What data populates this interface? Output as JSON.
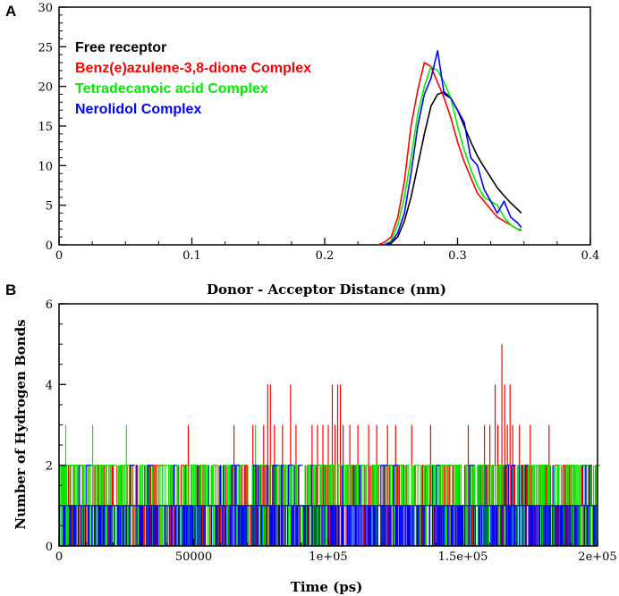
{
  "chart_data": [
    {
      "type": "line",
      "panel_label": "A",
      "xlabel": "Donor - Acceptor Distance (nm)",
      "ylabel": "",
      "xlim": [
        0,
        0.4
      ],
      "ylim": [
        0,
        30
      ],
      "xticks": [
        "0",
        "0.1",
        "0.2",
        "0.3",
        "0.4"
      ],
      "yticks": [
        "0",
        "5",
        "10",
        "15",
        "20",
        "25",
        "30"
      ],
      "legend_position": "top-left",
      "series": [
        {
          "name": "Free receptor",
          "color": "#000000",
          "x": [
            0.245,
            0.25,
            0.255,
            0.26,
            0.265,
            0.27,
            0.275,
            0.28,
            0.285,
            0.29,
            0.295,
            0.3,
            0.305,
            0.31,
            0.315,
            0.32,
            0.325,
            0.33,
            0.335,
            0.34,
            0.345,
            0.348
          ],
          "y": [
            0,
            0.2,
            1.0,
            3.0,
            6.0,
            10.0,
            14.0,
            17.5,
            19.0,
            19.3,
            18.5,
            17.0,
            15.0,
            13.0,
            11.2,
            9.8,
            8.5,
            7.2,
            6.2,
            5.3,
            4.5,
            4.0
          ]
        },
        {
          "name": "Benz(e)azulene-3,8-dione Complex",
          "color": "#ff0000",
          "x": [
            0.24,
            0.245,
            0.25,
            0.255,
            0.26,
            0.265,
            0.27,
            0.275,
            0.28,
            0.285,
            0.29,
            0.295,
            0.3,
            0.305,
            0.31,
            0.315,
            0.32,
            0.325,
            0.33,
            0.335,
            0.34,
            0.345,
            0.348
          ],
          "y": [
            0,
            0.3,
            1.0,
            3.5,
            8.0,
            15.0,
            19.5,
            23.0,
            22.5,
            20.5,
            18.5,
            16.0,
            13.0,
            10.5,
            8.5,
            6.5,
            5.5,
            4.5,
            3.5,
            3.0,
            2.5,
            2.0,
            1.8
          ]
        },
        {
          "name": "Tetradecanoic acid Complex",
          "color": "#00ee00",
          "x": [
            0.245,
            0.25,
            0.255,
            0.26,
            0.265,
            0.27,
            0.275,
            0.28,
            0.285,
            0.29,
            0.295,
            0.3,
            0.305,
            0.31,
            0.315,
            0.32,
            0.325,
            0.33,
            0.335,
            0.34,
            0.345,
            0.348
          ],
          "y": [
            0,
            0.5,
            2.5,
            6.0,
            11.0,
            16.5,
            20.0,
            22.5,
            22.0,
            20.5,
            18.5,
            15.0,
            12.0,
            9.5,
            7.5,
            6.0,
            5.5,
            5.0,
            3.5,
            2.5,
            2.0,
            2.0
          ]
        },
        {
          "name": "Nerolidol Complex",
          "color": "#0000ff",
          "x": [
            0.245,
            0.25,
            0.255,
            0.26,
            0.265,
            0.27,
            0.275,
            0.28,
            0.285,
            0.29,
            0.295,
            0.3,
            0.305,
            0.31,
            0.315,
            0.32,
            0.325,
            0.33,
            0.335,
            0.34,
            0.345,
            0.348
          ],
          "y": [
            0,
            0.3,
            1.5,
            4.0,
            9.0,
            15.0,
            19.0,
            21.0,
            24.5,
            19.0,
            18.5,
            17.0,
            15.5,
            11.0,
            10.0,
            7.0,
            5.5,
            4.0,
            5.5,
            3.5,
            2.8,
            2.2
          ]
        }
      ]
    },
    {
      "type": "line",
      "panel_label": "B",
      "xlabel": "Time (ps)",
      "ylabel": "Number of Hydrogen Bonds",
      "xlim": [
        0,
        200000
      ],
      "ylim": [
        0,
        6
      ],
      "xticks": [
        "0",
        "50000",
        "1e+05",
        "1.5e+05",
        "2e+05"
      ],
      "yticks": [
        "0",
        "2",
        "4",
        "6"
      ],
      "draw_order": [
        "Benz(e)azulene-3,8-dione Complex",
        "Tetradecanoic acid Complex",
        "Nerolidol Complex"
      ],
      "series": [
        {
          "name": "Benz(e)azulene-3,8-dione Complex",
          "color": "#ff0000",
          "baseline": 1,
          "base_level": 2,
          "spikes": [
            {
              "x": 48000,
              "y": 3
            },
            {
              "x": 65000,
              "y": 3
            },
            {
              "x": 72000,
              "y": 3
            },
            {
              "x": 76000,
              "y": 3
            },
            {
              "x": 77500,
              "y": 4
            },
            {
              "x": 78500,
              "y": 4
            },
            {
              "x": 80000,
              "y": 3
            },
            {
              "x": 83000,
              "y": 3
            },
            {
              "x": 86000,
              "y": 4
            },
            {
              "x": 88000,
              "y": 3
            },
            {
              "x": 94000,
              "y": 3
            },
            {
              "x": 96000,
              "y": 3
            },
            {
              "x": 98000,
              "y": 3
            },
            {
              "x": 100000,
              "y": 3
            },
            {
              "x": 101500,
              "y": 4
            },
            {
              "x": 102500,
              "y": 3
            },
            {
              "x": 103500,
              "y": 4
            },
            {
              "x": 104500,
              "y": 4
            },
            {
              "x": 105500,
              "y": 3
            },
            {
              "x": 108000,
              "y": 3
            },
            {
              "x": 111000,
              "y": 3
            },
            {
              "x": 115000,
              "y": 3
            },
            {
              "x": 118000,
              "y": 3
            },
            {
              "x": 122000,
              "y": 3
            },
            {
              "x": 125000,
              "y": 3
            },
            {
              "x": 131000,
              "y": 3
            },
            {
              "x": 138000,
              "y": 3
            },
            {
              "x": 152000,
              "y": 3
            },
            {
              "x": 158000,
              "y": 3
            },
            {
              "x": 160000,
              "y": 3
            },
            {
              "x": 162000,
              "y": 4
            },
            {
              "x": 163000,
              "y": 3
            },
            {
              "x": 164500,
              "y": 5
            },
            {
              "x": 165500,
              "y": 4
            },
            {
              "x": 166500,
              "y": 3
            },
            {
              "x": 167500,
              "y": 4
            },
            {
              "x": 168500,
              "y": 3
            },
            {
              "x": 171000,
              "y": 3
            },
            {
              "x": 175000,
              "y": 3
            },
            {
              "x": 182000,
              "y": 3
            }
          ],
          "twos_density": 0.35
        },
        {
          "name": "Tetradecanoic acid Complex",
          "color": "#00ee00",
          "baseline": 1,
          "spikes": [
            {
              "x": 2500,
              "y": 3
            },
            {
              "x": 12500,
              "y": 3
            },
            {
              "x": 25000,
              "y": 3
            },
            {
              "x": 73000,
              "y": 3
            }
          ],
          "twos_density": 0.45
        },
        {
          "name": "Nerolidol Complex",
          "color": "#0000ff",
          "baseline": 1,
          "spikes": [],
          "twos_density": 0.06
        }
      ]
    }
  ]
}
